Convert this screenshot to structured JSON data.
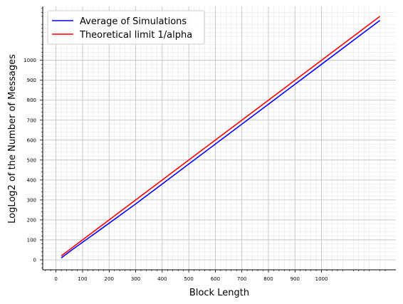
{
  "chart_data": {
    "type": "line",
    "title": "",
    "xlabel": "Block Length",
    "ylabel": "LogLog2 of the Number of Messages",
    "xlim": [
      -50,
      1280
    ],
    "ylim": [
      -50,
      1270
    ],
    "x_ticks": [
      0,
      100,
      200,
      300,
      400,
      500,
      600,
      700,
      800,
      900,
      1000
    ],
    "y_ticks": [
      0,
      100,
      200,
      300,
      400,
      500,
      600,
      700,
      800,
      900,
      1000
    ],
    "grid": "on (major and minor)",
    "legend_position": "upper-left",
    "series": [
      {
        "name": "Average of Simulations",
        "color": "#0000ff",
        "x": [
          20,
          60,
          160,
          300,
          500,
          700,
          1000,
          1220
        ],
        "y": [
          10,
          50,
          145,
          280,
          480,
          680,
          980,
          1200
        ]
      },
      {
        "name": "Theoretical limit 1/alpha",
        "color": "#ff0000",
        "x": [
          20,
          1220
        ],
        "y": [
          20,
          1220
        ]
      }
    ]
  }
}
